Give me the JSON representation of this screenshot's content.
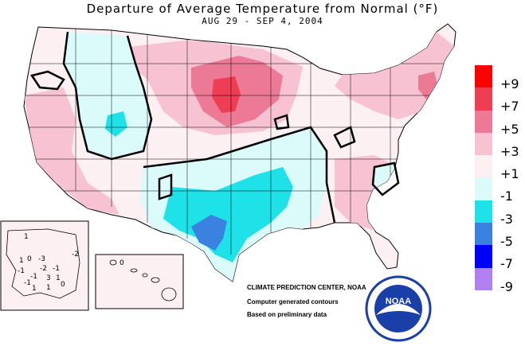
{
  "title": "Departure of Average Temperature from Normal (°F)",
  "subtitle": "AUG 29 - SEP  4, 2004",
  "legend": [
    {
      "label": "+9",
      "color": "#ff0000"
    },
    {
      "label": "+7",
      "color": "#ee3e54"
    },
    {
      "label": "+5",
      "color": "#ec7a97"
    },
    {
      "label": "+3",
      "color": "#f7c3d2"
    },
    {
      "label": "+1",
      "color": "#fdf0f3"
    },
    {
      "label": "-1",
      "color": "#dbfbfb"
    },
    {
      "label": "-3",
      "color": "#1fe1e8"
    },
    {
      "label": "-5",
      "color": "#3b82e0"
    },
    {
      "label": "-7",
      "color": "#0000ff"
    },
    {
      "label": "-9",
      "color": "#b080ee"
    }
  ],
  "credit": {
    "center": "CLIMATE PREDICTION CENTER, NOAA",
    "line2": "Computer generated contours",
    "line3": "Based on preliminary data"
  },
  "alaska_labels": [
    "0",
    "-3",
    "-2",
    "1",
    "-1",
    "-1",
    "3",
    "-1",
    "-1",
    "1",
    "0",
    "1",
    "-2",
    "1",
    "1"
  ],
  "hawaii_label": "0",
  "logo_text": "NOAA"
}
